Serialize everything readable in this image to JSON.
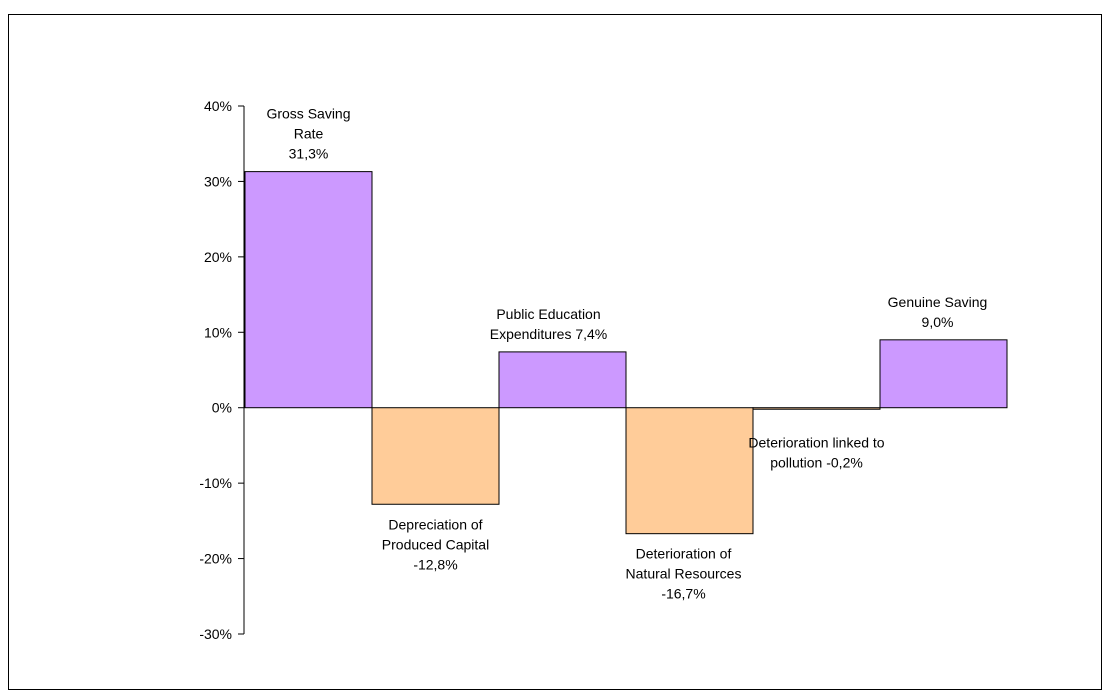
{
  "chart_data": {
    "type": "bar",
    "title": "",
    "xlabel": "",
    "ylabel": "",
    "ylim": [
      -0.3,
      0.4
    ],
    "y_ticks": [
      {
        "value": 0.4,
        "label": "40%"
      },
      {
        "value": 0.3,
        "label": "30%"
      },
      {
        "value": 0.2,
        "label": "20%"
      },
      {
        "value": 0.1,
        "label": "10%"
      },
      {
        "value": 0.0,
        "label": "0%"
      },
      {
        "value": -0.1,
        "label": "-10%"
      },
      {
        "value": -0.2,
        "label": "-20%"
      },
      {
        "value": -0.3,
        "label": "-30%"
      }
    ],
    "grid": false,
    "colors": {
      "positive": "#cc99ff",
      "negative": "#ffcc99",
      "outline": "#000000"
    },
    "bars": [
      {
        "value": 0.313,
        "color_key": "positive",
        "label_lines": [
          "Gross Saving",
          "Rate",
          "31,3%"
        ]
      },
      {
        "value": -0.128,
        "color_key": "negative",
        "label_lines": [
          "Depreciation of",
          "Produced Capital",
          "-12,8%"
        ]
      },
      {
        "value": 0.074,
        "color_key": "positive",
        "label_lines": [
          "Public Education",
          "Expenditures 7,4%"
        ]
      },
      {
        "value": -0.167,
        "color_key": "negative",
        "label_lines": [
          "Deterioration of",
          "Natural Resources",
          "-16,7%"
        ]
      },
      {
        "value": -0.002,
        "color_key": "negative",
        "label_lines": [
          "Deterioration linked to",
          "pollution -0,2%"
        ]
      },
      {
        "value": 0.09,
        "color_key": "positive",
        "label_lines": [
          "Genuine Saving",
          "9,0%"
        ]
      }
    ]
  }
}
